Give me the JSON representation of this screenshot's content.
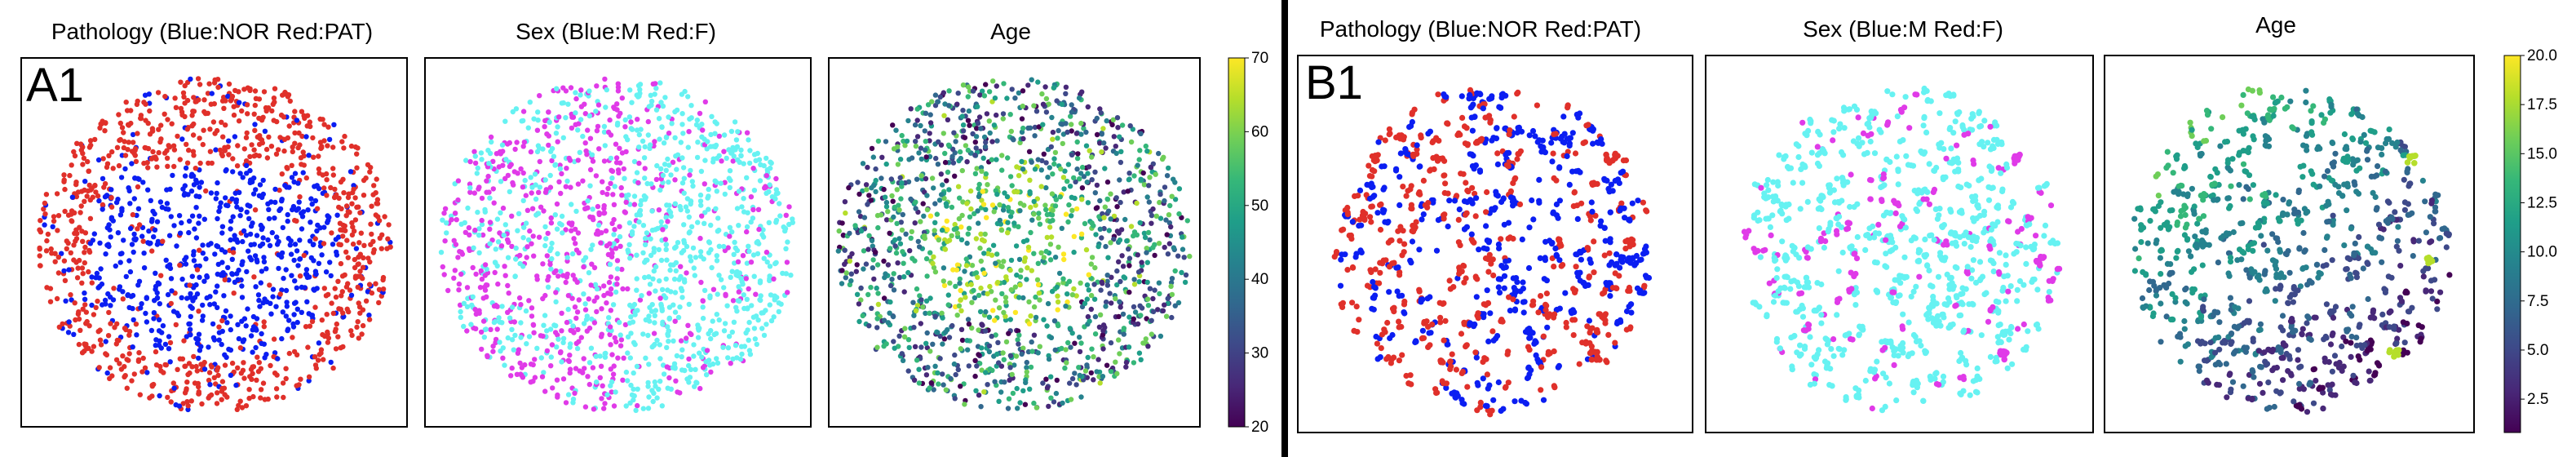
{
  "figure": {
    "separator_color": "#000000"
  },
  "colors": {
    "NOR": "#0b1ef2",
    "PAT": "#e0302a",
    "M": "#66f2f2",
    "F": "#e03ae8"
  },
  "chart_data": [
    {
      "id": "A1-pathology",
      "type": "scatter",
      "title": "Pathology (Blue:NOR Red:PAT)",
      "panel_label": "A1",
      "legend": "none",
      "axes_ticks": "none",
      "grid": false,
      "description_series": [
        "NOR",
        "PAT"
      ]
    },
    {
      "id": "A1-sex",
      "type": "scatter",
      "title": "Sex (Blue:M Red:F)",
      "legend": "none",
      "axes_ticks": "none",
      "grid": false,
      "description_series": [
        "M",
        "F"
      ]
    },
    {
      "id": "A1-age",
      "type": "scatter",
      "title": "Age",
      "legend": "none",
      "colormap": "viridis",
      "colorbar": {
        "ticks": [
          "20",
          "30",
          "40",
          "50",
          "60",
          "70"
        ],
        "range": [
          20,
          70
        ]
      },
      "grid": false
    },
    {
      "id": "B1-pathology",
      "type": "scatter",
      "title": "Pathology (Blue:NOR Red:PAT)",
      "panel_label": "B1",
      "legend": "none",
      "axes_ticks": "none",
      "grid": false,
      "description_series": [
        "NOR",
        "PAT"
      ]
    },
    {
      "id": "B1-sex",
      "type": "scatter",
      "title": "Sex (Blue:M Red:F)",
      "legend": "none",
      "axes_ticks": "none",
      "grid": false,
      "description_series": [
        "M",
        "F"
      ]
    },
    {
      "id": "B1-age",
      "type": "scatter",
      "title": "Age",
      "legend": "none",
      "colormap": "viridis",
      "colorbar": {
        "ticks": [
          "2.5",
          "5.0",
          "7.5",
          "10.0",
          "12.5",
          "15.0",
          "17.5",
          "20.0"
        ],
        "range": [
          0.8,
          20.0
        ]
      },
      "grid": false
    }
  ]
}
